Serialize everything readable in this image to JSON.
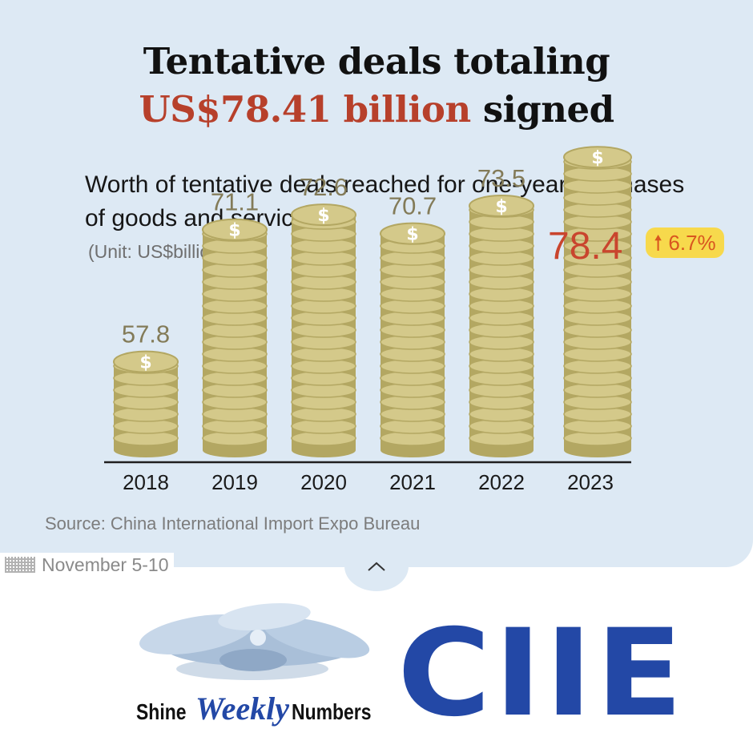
{
  "headline": {
    "line1": "Tentative deals totaling",
    "highlight": "US$78.41 billion",
    "line2_rest": " signed"
  },
  "subtitle": "Worth of tentative deals reached for one-year purchases of goods and services:",
  "unit": "(Unit: US$billion)",
  "highlight_value": "78.4",
  "growth_badge": "6.7%",
  "source": "Source: China International Import Expo Bureau",
  "date": "November 5-10",
  "branding": {
    "shine": "Shine",
    "weekly": "Weekly",
    "numbers": "Numbers",
    "ciie": "CIIE"
  },
  "colors": {
    "panel": "#dde9f4",
    "coin": "#d4c98a",
    "coin_shadow": "#b3a762",
    "label": "#837b58",
    "accent": "#c9452e",
    "badge": "#f7d94c",
    "ciie_blue": "#2348a6"
  },
  "chart_data": {
    "type": "bar",
    "categories": [
      "2018",
      "2019",
      "2020",
      "2021",
      "2022",
      "2023"
    ],
    "values": [
      57.8,
      71.1,
      72.6,
      70.7,
      73.5,
      78.4
    ],
    "value_labels": [
      "57.8",
      "71.1",
      "72.6",
      "70.7",
      "73.5",
      "78.4"
    ],
    "ylabel": "(Unit: US$billion)",
    "grid": false,
    "legend": "none"
  }
}
